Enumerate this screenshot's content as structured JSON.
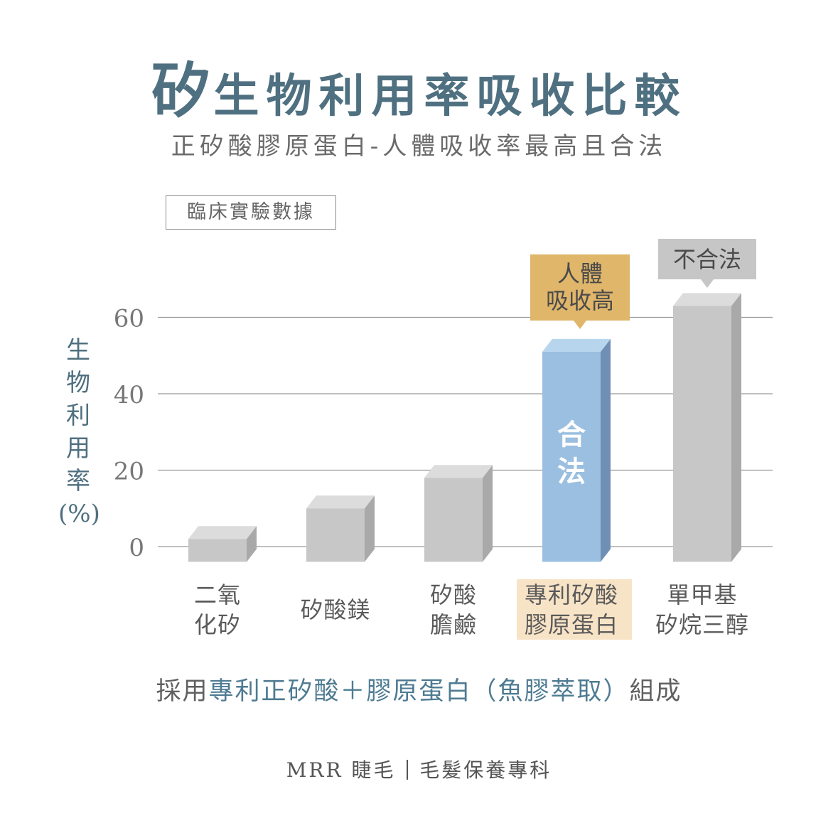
{
  "title": {
    "lead": "矽",
    "rest": "生物利用率吸收比較"
  },
  "subtitle": "正矽酸膠原蛋白-人體吸收率最高且合法",
  "tag": "臨床實驗數據",
  "y_label_chars": [
    "生",
    "物",
    "利",
    "用",
    "率",
    "(%)"
  ],
  "footnote": {
    "a": "採用",
    "b": "專利正矽酸＋膠原蛋白（魚膠萃取）",
    "c": "組成"
  },
  "brand": {
    "left": "MRR 睫毛",
    "right": "毛髮保養專科"
  },
  "chart_data": {
    "type": "bar",
    "categories": [
      "二氧\n化矽",
      "矽酸鎂",
      "矽酸\n膽鹼",
      "專利矽酸\n膠原蛋白",
      "單甲基\n矽烷三醇"
    ],
    "values": [
      2,
      10,
      18,
      51,
      63
    ],
    "ylabel": "生物利用率 (%)",
    "yticks": [
      0,
      20,
      40,
      60
    ],
    "ylim": [
      -4,
      64
    ],
    "grid": true,
    "highlight_index": 3,
    "bar_inner_label": {
      "index": 3,
      "lines": [
        "合",
        "法"
      ]
    },
    "callouts": [
      {
        "index": 3,
        "lines": [
          "人體",
          "吸收高"
        ],
        "color": "#e0b66b"
      },
      {
        "index": 4,
        "lines": [
          "不合法"
        ],
        "color": "#c6c6c6"
      }
    ],
    "colors": {
      "bar_face": "#c7c7c7",
      "bar_top": "#dcdcdc",
      "bar_side": "#a9a9a9",
      "hl_face": "#9bbfe0",
      "hl_top": "#b7d6ee",
      "hl_side": "#6f8fb5",
      "hl_label_bg": "#f7e3c6",
      "grid": "#9a9a9a",
      "tick": "#777777"
    }
  }
}
